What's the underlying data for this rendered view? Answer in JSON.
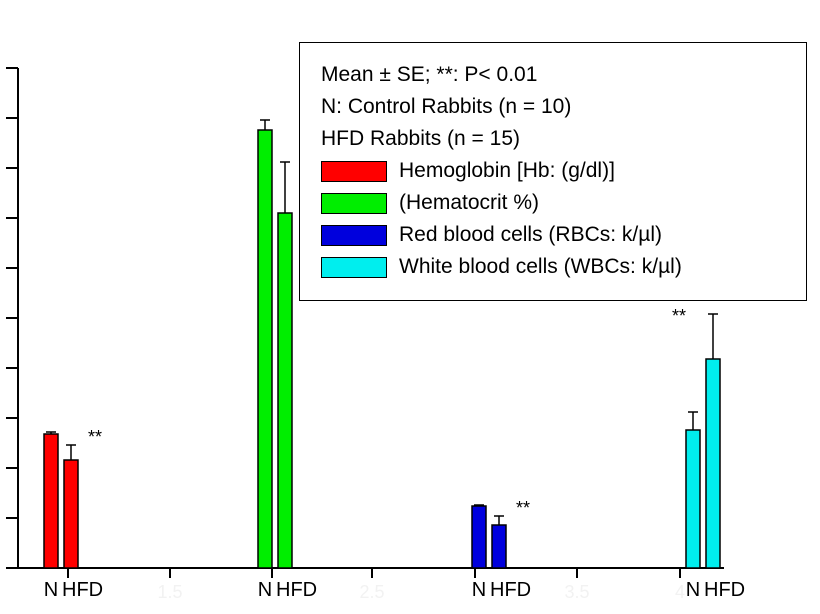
{
  "chart_data": {
    "type": "bar",
    "groups": [
      {
        "n_label": "N",
        "hfd_label": "HFD",
        "color": "#ff0000",
        "n_value": 2.68,
        "n_error": 0.04,
        "hfd_value": 2.16,
        "hfd_error": 0.3,
        "hfd_sig": "**"
      },
      {
        "n_label": "N",
        "hfd_label": "HFD",
        "color": "#00ee00",
        "n_value": 8.76,
        "n_error": 0.2,
        "hfd_value": 7.1,
        "hfd_error": 1.02,
        "hfd_sig": "**"
      },
      {
        "n_label": "N",
        "hfd_label": "HFD",
        "color": "#0000dd",
        "n_value": 1.24,
        "n_error": 0.02,
        "hfd_value": 0.86,
        "hfd_error": 0.18,
        "hfd_sig": "**"
      },
      {
        "n_label": "N",
        "hfd_label": "HFD",
        "color": "#00eeee",
        "n_value": 2.76,
        "n_error": 0.36,
        "hfd_value": 4.18,
        "hfd_error": 0.9,
        "hfd_sig": "**"
      }
    ],
    "y_range": [
      0,
      10
    ],
    "x_tick_labels": [
      "1.5",
      "2.5",
      "3.5",
      "4"
    ],
    "legend": {
      "header_lines": [
        "Mean ± SE;  **: P< 0.01",
        "N: Control Rabbits (n = 10)",
        "HFD Rabbits (n = 15)"
      ],
      "entries": [
        {
          "label": "Hemoglobin [Hb: (g/dl)]",
          "color": "#ff0000"
        },
        {
          "label": "(Hematocrit %)",
          "color": "#00ee00"
        },
        {
          "label": "Red blood cells (RBCs: k/µl)",
          "color": "#0000dd"
        },
        {
          "label": "White blood cells (WBCs: k/µl)",
          "color": "#00eeee"
        }
      ],
      "placement": "top-right"
    }
  }
}
